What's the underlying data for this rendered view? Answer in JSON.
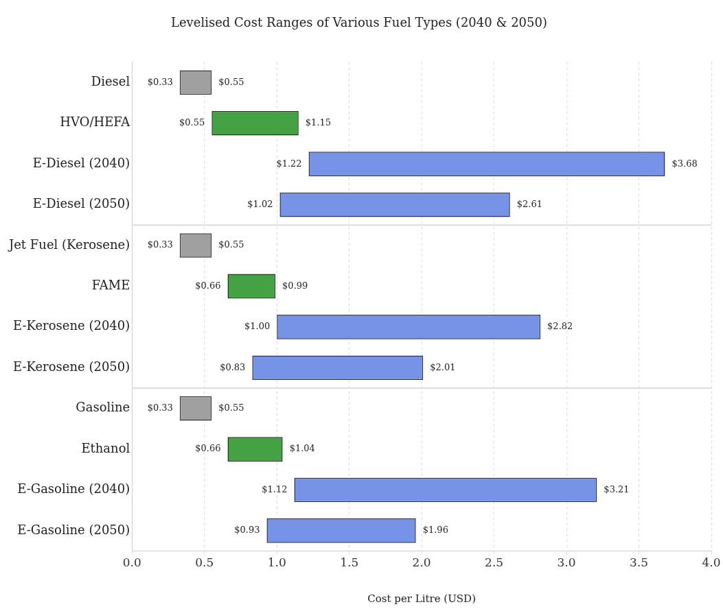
{
  "chart_data": {
    "type": "bar",
    "orientation": "horizontal",
    "title": "Levelised Cost Ranges of Various Fuel Types (2040 & 2050)",
    "xlabel": "Cost per Litre (USD)",
    "categories": [
      "Diesel",
      "HVO/HEFA",
      "E-Diesel (2040)",
      "E-Diesel (2050)",
      "Jet Fuel (Kerosene)",
      "FAME",
      "E-Kerosene (2040)",
      "E-Kerosene (2050)",
      "Gasoline",
      "Ethanol",
      "E-Gasoline (2040)",
      "E-Gasoline (2050)"
    ],
    "base": [
      0.33,
      0.55,
      1.22,
      1.02,
      0.33,
      0.66,
      1.0,
      0.83,
      0.33,
      0.66,
      1.12,
      0.93
    ],
    "values": [
      0.22,
      0.6,
      2.46,
      1.59,
      0.22,
      0.33,
      1.82,
      1.18,
      0.22,
      0.38,
      2.09,
      1.03
    ],
    "colors": [
      "#a0a0a0",
      "#44a244",
      "#7693e8",
      "#7693e8",
      "#a0a0a0",
      "#44a244",
      "#7693e8",
      "#7693e8",
      "#a0a0a0",
      "#44a244",
      "#7693e8",
      "#7693e8"
    ],
    "xlim": [
      0,
      4
    ],
    "xticks": [
      {
        "value": 0,
        "label": "0.0"
      },
      {
        "value": 0.5,
        "label": "0.5"
      },
      {
        "value": 1,
        "label": "1.0"
      },
      {
        "value": 1.5,
        "label": "1.5"
      },
      {
        "value": 2,
        "label": "2.0"
      },
      {
        "value": 2.5,
        "label": "2.5"
      },
      {
        "value": 3,
        "label": "3.0"
      },
      {
        "value": 3.5,
        "label": "3.5"
      },
      {
        "value": 4,
        "label": "4.0"
      }
    ],
    "grid": "x",
    "annotations": [
      {
        "text": "$0.33",
        "x": 0.33,
        "y": "Diesel"
      },
      {
        "text": "$0.55",
        "x": 0.55,
        "y": "Diesel"
      },
      {
        "text": "$0.55",
        "x": 0.55,
        "y": "HVO/HEFA"
      },
      {
        "text": "$1.15",
        "x": 1.15,
        "y": "HVO/HEFA"
      },
      {
        "text": "$1.22",
        "x": 1.22,
        "y": "E-Diesel (2040)"
      },
      {
        "text": "$3.68",
        "x": 3.68,
        "y": "E-Diesel (2040)"
      },
      {
        "text": "$1.02",
        "x": 1.02,
        "y": "E-Diesel (2050)"
      },
      {
        "text": "$2.61",
        "x": 2.61,
        "y": "E-Diesel (2050)"
      },
      {
        "text": "$0.33",
        "x": 0.33,
        "y": "Jet Fuel (Kerosene)"
      },
      {
        "text": "$0.55",
        "x": 0.55,
        "y": "Jet Fuel (Kerosene)"
      },
      {
        "text": "$0.66",
        "x": 0.66,
        "y": "FAME"
      },
      {
        "text": "$0.99",
        "x": 0.99,
        "y": "FAME"
      },
      {
        "text": "$1.00",
        "x": 1.0,
        "y": "E-Kerosene (2040)"
      },
      {
        "text": "$2.82",
        "x": 2.82,
        "y": "E-Kerosene (2040)"
      },
      {
        "text": "$0.83",
        "x": 0.83,
        "y": "E-Kerosene (2050)"
      },
      {
        "text": "$2.01",
        "x": 2.01,
        "y": "E-Kerosene (2050)"
      },
      {
        "text": "$0.33",
        "x": 0.33,
        "y": "Gasoline"
      },
      {
        "text": "$0.55",
        "x": 0.55,
        "y": "Gasoline"
      },
      {
        "text": "$0.66",
        "x": 0.66,
        "y": "Ethanol"
      },
      {
        "text": "$1.04",
        "x": 1.04,
        "y": "Ethanol"
      },
      {
        "text": "$1.12",
        "x": 1.12,
        "y": "E-Gasoline (2040)"
      },
      {
        "text": "$3.21",
        "x": 3.21,
        "y": "E-Gasoline (2040)"
      },
      {
        "text": "$0.93",
        "x": 0.93,
        "y": "E-Gasoline (2050)"
      },
      {
        "text": "$1.96",
        "x": 1.96,
        "y": "E-Gasoline (2050)"
      }
    ]
  }
}
